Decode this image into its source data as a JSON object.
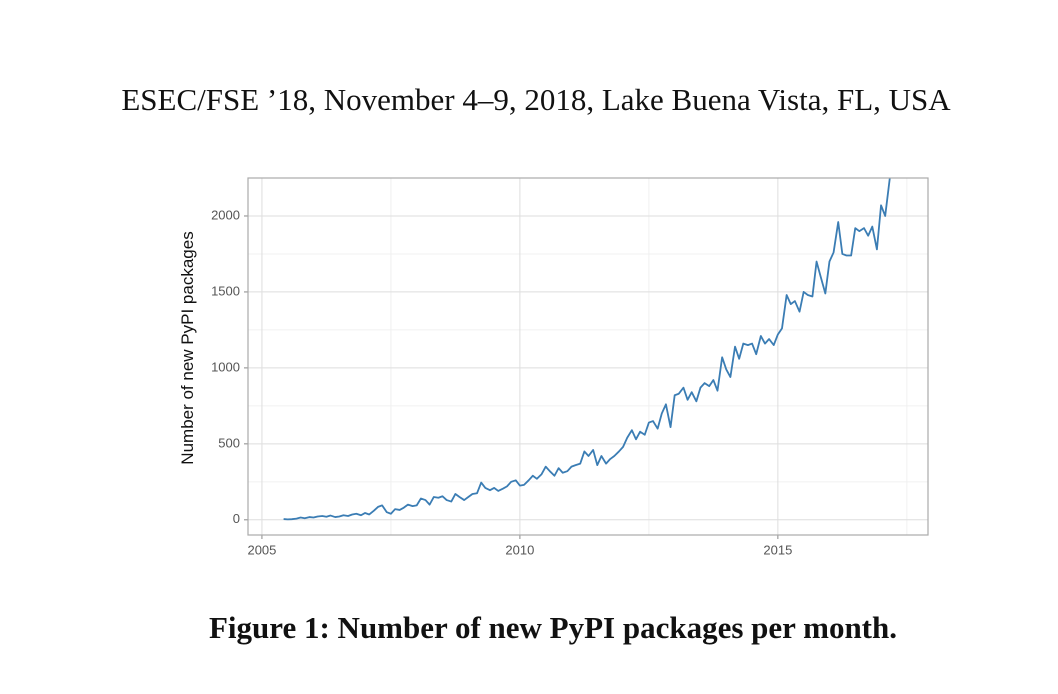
{
  "header": {
    "title": "ESEC/FSE ’18, November 4–9, 2018, Lake Buena Vista, FL, USA"
  },
  "chart_data": {
    "type": "line",
    "y_label": "Number of new PyPI packages",
    "x": [
      2005.42,
      2005.5,
      2005.58,
      2005.67,
      2005.75,
      2005.83,
      2005.92,
      2006.0,
      2006.08,
      2006.17,
      2006.25,
      2006.33,
      2006.42,
      2006.5,
      2006.58,
      2006.67,
      2006.75,
      2006.83,
      2006.92,
      2007.0,
      2007.08,
      2007.17,
      2007.25,
      2007.33,
      2007.42,
      2007.5,
      2007.58,
      2007.67,
      2007.75,
      2007.83,
      2007.92,
      2008.0,
      2008.08,
      2008.17,
      2008.25,
      2008.33,
      2008.42,
      2008.5,
      2008.58,
      2008.67,
      2008.75,
      2008.83,
      2008.92,
      2009.0,
      2009.08,
      2009.17,
      2009.25,
      2009.33,
      2009.42,
      2009.5,
      2009.58,
      2009.67,
      2009.75,
      2009.83,
      2009.92,
      2010.0,
      2010.08,
      2010.17,
      2010.25,
      2010.33,
      2010.42,
      2010.5,
      2010.58,
      2010.67,
      2010.75,
      2010.83,
      2010.92,
      2011.0,
      2011.08,
      2011.17,
      2011.25,
      2011.33,
      2011.42,
      2011.5,
      2011.58,
      2011.67,
      2011.75,
      2011.83,
      2011.92,
      2012.0,
      2012.08,
      2012.17,
      2012.25,
      2012.33,
      2012.42,
      2012.5,
      2012.58,
      2012.67,
      2012.75,
      2012.83,
      2012.92,
      2013.0,
      2013.08,
      2013.17,
      2013.25,
      2013.33,
      2013.42,
      2013.5,
      2013.58,
      2013.67,
      2013.75,
      2013.83,
      2013.92,
      2014.0,
      2014.08,
      2014.17,
      2014.25,
      2014.33,
      2014.42,
      2014.5,
      2014.58,
      2014.67,
      2014.75,
      2014.83,
      2014.92,
      2015.0,
      2015.08,
      2015.17,
      2015.25,
      2015.33,
      2015.42,
      2015.5,
      2015.58,
      2015.67,
      2015.75,
      2015.83,
      2015.92,
      2016.0,
      2016.08,
      2016.17,
      2016.25,
      2016.33,
      2016.42,
      2016.5,
      2016.58,
      2016.67,
      2016.75,
      2016.83,
      2016.92,
      2017.0,
      2017.08,
      2017.17
    ],
    "series": [
      {
        "color": "#3b7db4",
        "values": [
          5,
          3,
          4,
          8,
          15,
          10,
          18,
          15,
          22,
          25,
          20,
          28,
          18,
          22,
          30,
          25,
          35,
          40,
          30,
          45,
          35,
          60,
          85,
          95,
          50,
          40,
          70,
          65,
          80,
          100,
          90,
          95,
          140,
          130,
          100,
          150,
          145,
          155,
          130,
          120,
          170,
          150,
          130,
          150,
          170,
          175,
          245,
          210,
          195,
          210,
          190,
          205,
          220,
          250,
          260,
          225,
          230,
          260,
          290,
          270,
          300,
          350,
          320,
          290,
          340,
          310,
          320,
          350,
          360,
          370,
          450,
          420,
          460,
          360,
          420,
          370,
          400,
          420,
          450,
          480,
          540,
          590,
          530,
          580,
          560,
          640,
          650,
          600,
          700,
          760,
          610,
          820,
          830,
          870,
          790,
          840,
          780,
          870,
          900,
          880,
          920,
          850,
          1070,
          990,
          940,
          1140,
          1060,
          1160,
          1150,
          1160,
          1090,
          1210,
          1160,
          1190,
          1150,
          1220,
          1260,
          1480,
          1420,
          1440,
          1370,
          1500,
          1480,
          1470,
          1700,
          1600,
          1490,
          1700,
          1760,
          1960,
          1750,
          1740,
          1740,
          1920,
          1900,
          1920,
          1870,
          1930,
          1780,
          2070,
          2000,
          2250
        ]
      }
    ],
    "xlim": [
      2004.73,
      2017.91
    ],
    "ylim": [
      -100,
      2250
    ],
    "xticks": [
      2005,
      2010,
      2015
    ],
    "yticks": [
      0,
      500,
      1000,
      1500,
      2000
    ],
    "x_minor_ticks": [
      2007.5,
      2012.5,
      2017.5
    ],
    "y_minor_ticks": [
      250,
      750,
      1250,
      1750
    ],
    "grid": true
  },
  "caption": "Figure 1: Number of new PyPI packages per month."
}
